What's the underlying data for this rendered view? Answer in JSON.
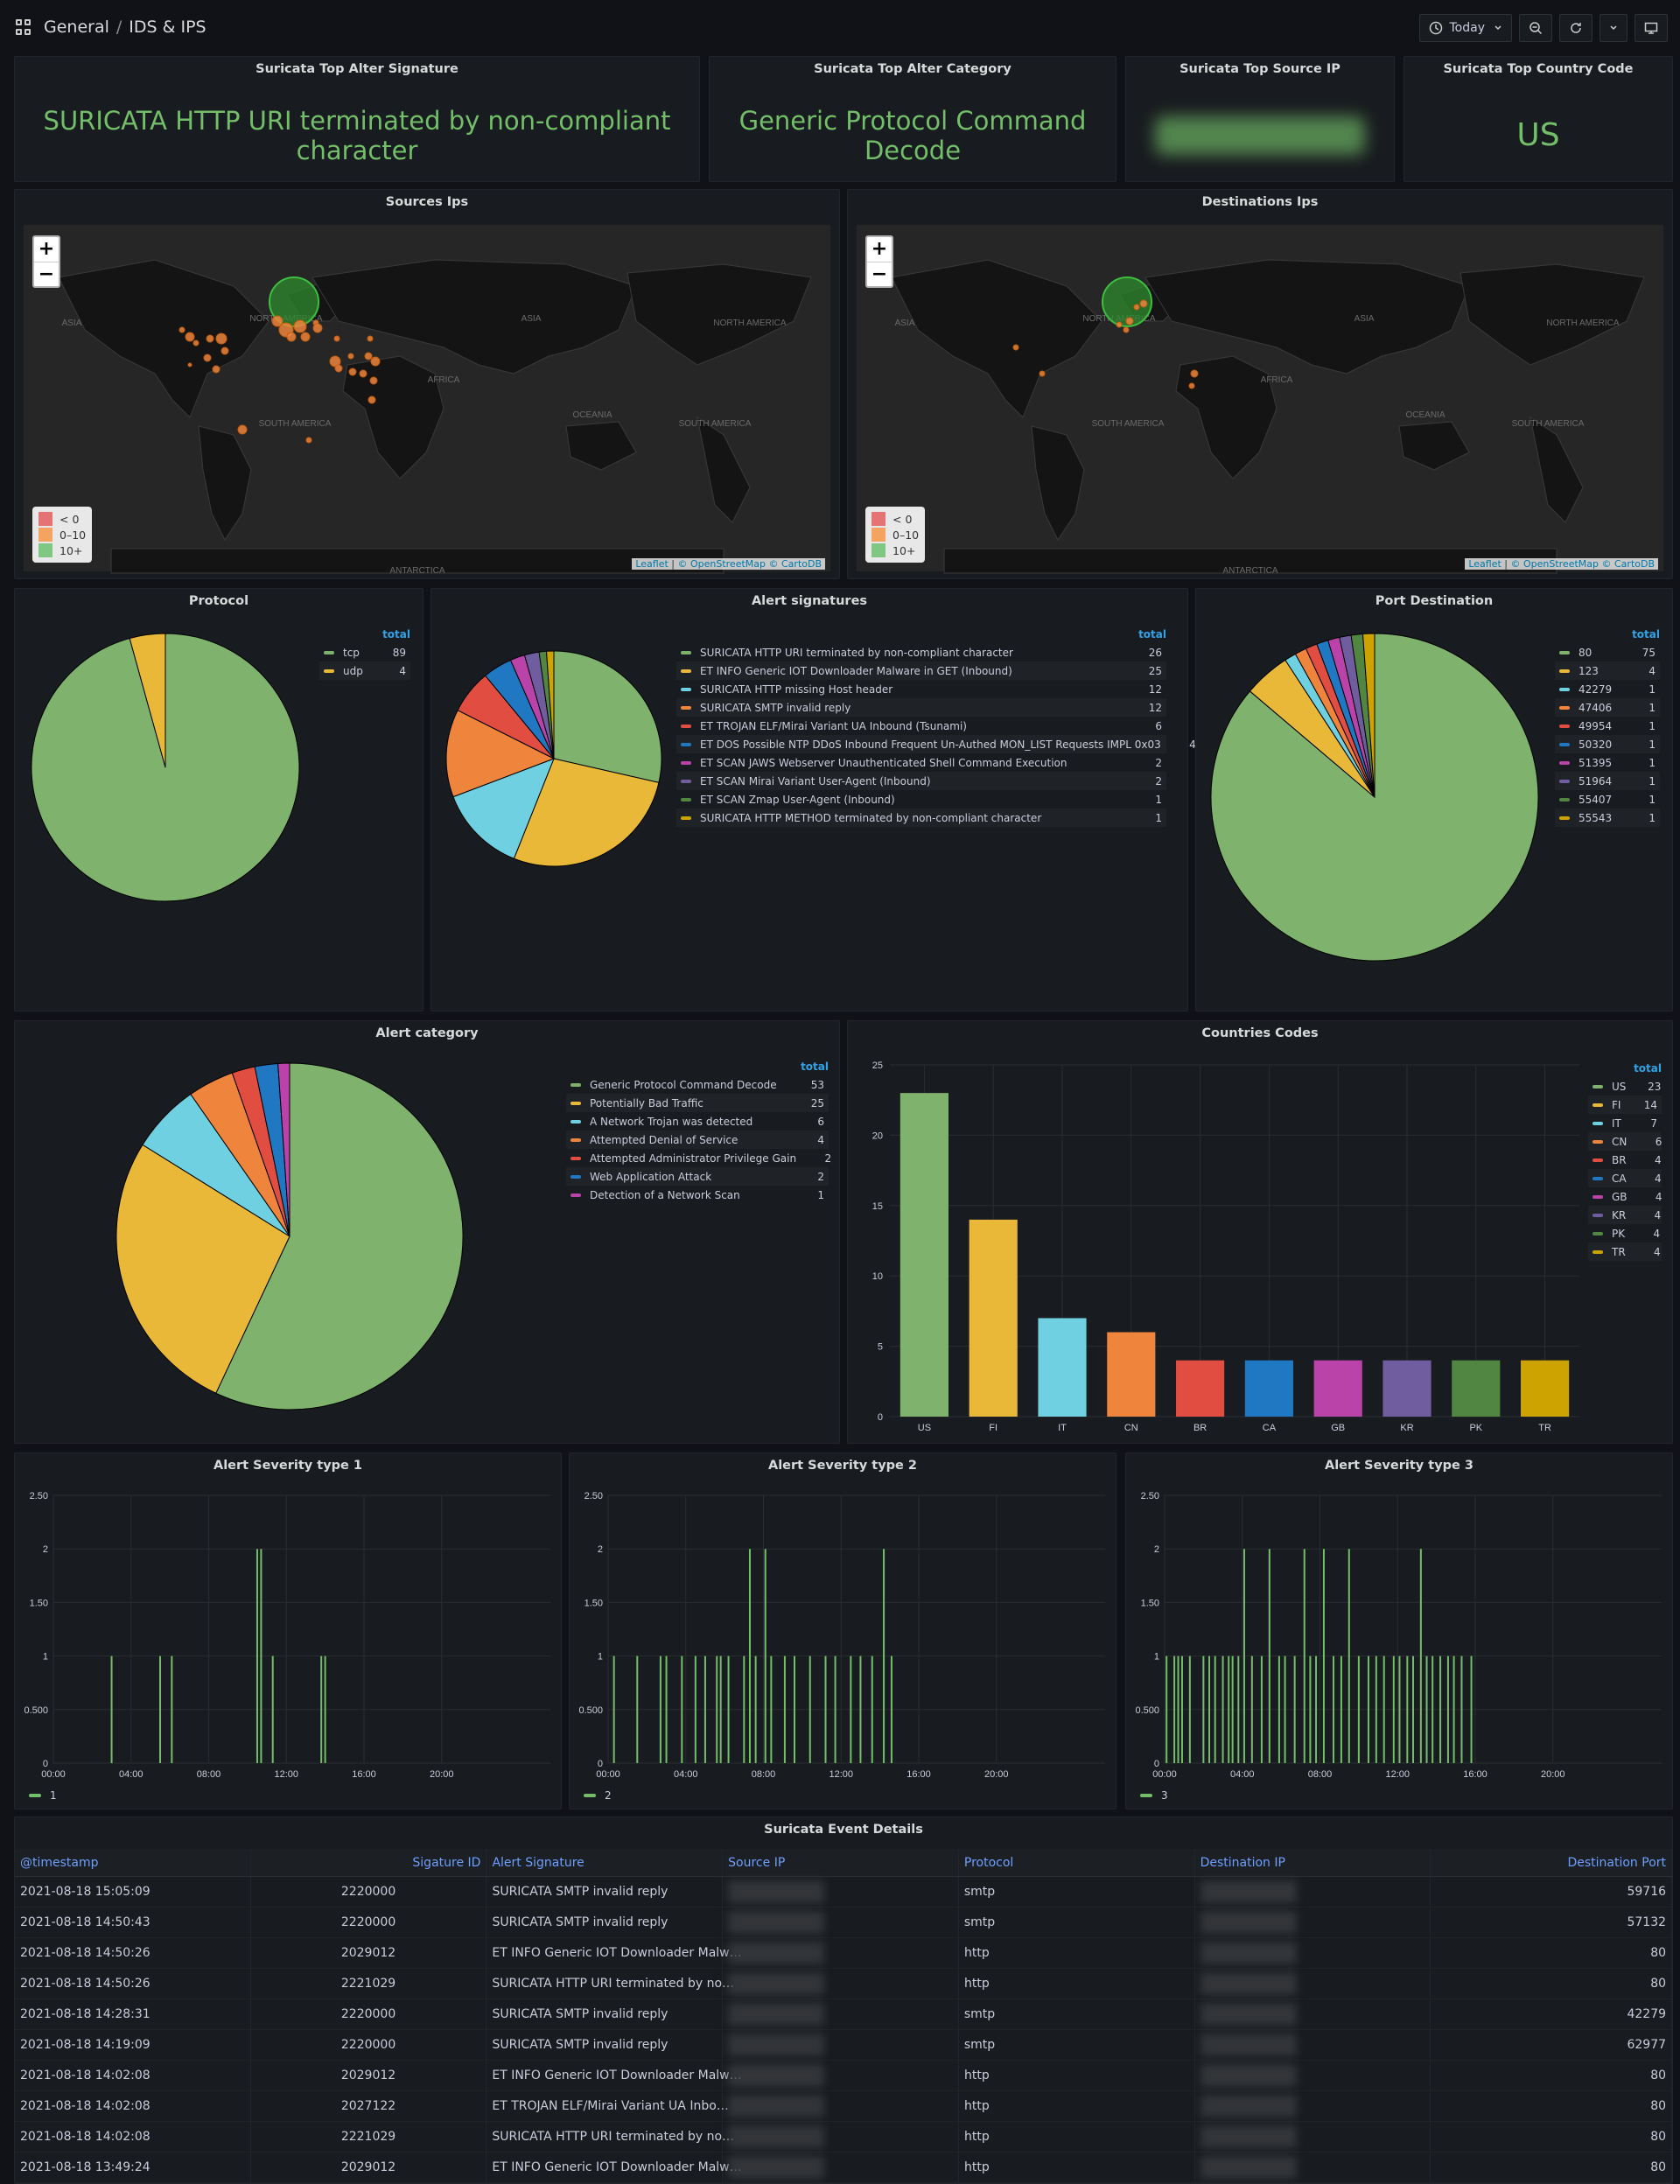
{
  "breadcrumb": {
    "folder": "General",
    "dashboard": "IDS & IPS"
  },
  "toolbar": {
    "time_range": "Today"
  },
  "colors": {
    "green": "#73bf69",
    "yellow": "#f2cc0c",
    "palette": [
      "#7eb26d",
      "#eab839",
      "#6ed0e0",
      "#ef843c",
      "#e24d42",
      "#1f78c1",
      "#ba43a9",
      "#705da0",
      "#508642",
      "#cca300"
    ]
  },
  "stats": [
    {
      "title": "Suricata Top Alter Signature",
      "value": "SURICATA HTTP URI terminated by non-compliant character"
    },
    {
      "title": "Suricata Top Alter Category",
      "value": "Generic Protocol Command Decode"
    },
    {
      "title": "Suricata Top Source IP",
      "value": ""
    },
    {
      "title": "Suricata Top Country Code",
      "value": "US"
    }
  ],
  "maps": {
    "sources": {
      "title": "Sources Ips"
    },
    "destinations": {
      "title": "Destinations Ips"
    },
    "labels": [
      "ASIA",
      "NORTH AMERICA",
      "ASIA",
      "NORTH AMERICA",
      "AFRICA",
      "SOUTH AMERICA",
      "OCEANIA",
      "SOUTH AMERICA",
      "ANTARCTICA"
    ],
    "legend": [
      "< 0",
      "0–10",
      "10+"
    ],
    "attribution": {
      "leaflet": "Leaflet",
      "osm": "© OpenStreetMap",
      "carto": "© CartoDB"
    }
  },
  "protocol": {
    "title": "Protocol",
    "header": "total",
    "items": [
      {
        "name": "tcp",
        "value": 89
      },
      {
        "name": "udp",
        "value": 4
      }
    ]
  },
  "signatures": {
    "title": "Alert signatures",
    "header": "total",
    "items": [
      {
        "name": "SURICATA HTTP URI terminated by non-compliant character",
        "value": 26
      },
      {
        "name": "ET INFO Generic IOT Downloader Malware in GET (Inbound)",
        "value": 25
      },
      {
        "name": "SURICATA HTTP missing Host header",
        "value": 12
      },
      {
        "name": "SURICATA SMTP invalid reply",
        "value": 12
      },
      {
        "name": "ET TROJAN ELF/Mirai Variant UA Inbound (Tsunami)",
        "value": 6
      },
      {
        "name": "ET DOS Possible NTP DDoS Inbound Frequent Un-Authed MON_LIST Requests IMPL 0x03",
        "value": 4
      },
      {
        "name": "ET SCAN JAWS Webserver Unauthenticated Shell Command Execution",
        "value": 2
      },
      {
        "name": "ET SCAN Mirai Variant User-Agent (Inbound)",
        "value": 2
      },
      {
        "name": "ET SCAN Zmap User-Agent (Inbound)",
        "value": 1
      },
      {
        "name": "SURICATA HTTP METHOD terminated by non-compliant character",
        "value": 1
      }
    ]
  },
  "ports": {
    "title": "Port Destination",
    "header": "total",
    "items": [
      {
        "name": "80",
        "value": 75
      },
      {
        "name": "123",
        "value": 4
      },
      {
        "name": "42279",
        "value": 1
      },
      {
        "name": "47406",
        "value": 1
      },
      {
        "name": "49954",
        "value": 1
      },
      {
        "name": "50320",
        "value": 1
      },
      {
        "name": "51395",
        "value": 1
      },
      {
        "name": "51964",
        "value": 1
      },
      {
        "name": "55407",
        "value": 1
      },
      {
        "name": "55543",
        "value": 1
      }
    ]
  },
  "categories": {
    "title": "Alert category",
    "header": "total",
    "items": [
      {
        "name": "Generic Protocol Command Decode",
        "value": 53
      },
      {
        "name": "Potentially Bad Traffic",
        "value": 25
      },
      {
        "name": "A Network Trojan was detected",
        "value": 6
      },
      {
        "name": "Attempted Denial of Service",
        "value": 4
      },
      {
        "name": "Attempted Administrator Privilege Gain",
        "value": 2
      },
      {
        "name": "Web Application Attack",
        "value": 2
      },
      {
        "name": "Detection of a Network Scan",
        "value": 1
      }
    ]
  },
  "chart_data": [
    {
      "type": "bar",
      "title": "Countries Codes",
      "categories": [
        "US",
        "FI",
        "IT",
        "CN",
        "BR",
        "CA",
        "GB",
        "KR",
        "PK",
        "TR"
      ],
      "values": [
        23,
        14,
        7,
        6,
        4,
        4,
        4,
        4,
        4,
        4
      ],
      "ylim": [
        0,
        25
      ],
      "yticks": [
        0,
        5,
        10,
        15,
        20,
        25
      ],
      "legend_header": "total",
      "legend": "right"
    },
    {
      "type": "bar",
      "title": "Alert Severity type 1",
      "series": [
        {
          "name": "1"
        }
      ],
      "xticks": [
        "00:00",
        "04:00",
        "08:00",
        "12:00",
        "16:00",
        "20:00"
      ],
      "yticks": [
        "0",
        "0.500",
        "1",
        "1.50",
        "2",
        "2.50"
      ],
      "ylim": [
        0,
        2.5
      ],
      "points": [
        [
          3,
          1
        ],
        [
          5.5,
          1
        ],
        [
          6.1,
          1
        ],
        [
          10.5,
          2
        ],
        [
          10.7,
          2
        ],
        [
          11.3,
          1
        ],
        [
          13.8,
          1
        ],
        [
          14,
          1
        ]
      ]
    },
    {
      "type": "bar",
      "title": "Alert Severity type 2",
      "series": [
        {
          "name": "2"
        }
      ],
      "xticks": [
        "00:00",
        "04:00",
        "08:00",
        "12:00",
        "16:00",
        "20:00"
      ],
      "yticks": [
        "0",
        "0.500",
        "1",
        "1.50",
        "2",
        "2.50"
      ],
      "ylim": [
        0,
        2.5
      ],
      "points": [
        [
          0.3,
          1
        ],
        [
          1.5,
          1
        ],
        [
          2.7,
          1
        ],
        [
          3,
          1
        ],
        [
          3.8,
          1
        ],
        [
          4.5,
          1
        ],
        [
          5,
          1
        ],
        [
          5.6,
          1
        ],
        [
          5.8,
          1
        ],
        [
          6.2,
          1
        ],
        [
          7,
          1
        ],
        [
          7.3,
          2
        ],
        [
          7.6,
          1
        ],
        [
          8.1,
          2
        ],
        [
          8.4,
          1
        ],
        [
          9.1,
          1
        ],
        [
          9.6,
          1
        ],
        [
          10.4,
          1
        ],
        [
          11.2,
          1
        ],
        [
          11.7,
          1
        ],
        [
          12.5,
          1
        ],
        [
          13,
          1
        ],
        [
          13.6,
          1
        ],
        [
          14.2,
          2
        ],
        [
          14.6,
          1
        ]
      ]
    },
    {
      "type": "bar",
      "title": "Alert Severity type 3",
      "series": [
        {
          "name": "3"
        }
      ],
      "xticks": [
        "00:00",
        "04:00",
        "08:00",
        "12:00",
        "16:00",
        "20:00"
      ],
      "yticks": [
        "0",
        "0.500",
        "1",
        "1.50",
        "2",
        "2.50"
      ],
      "ylim": [
        0,
        2.5
      ],
      "points": [
        [
          0.1,
          1
        ],
        [
          0.5,
          1
        ],
        [
          0.7,
          1
        ],
        [
          0.9,
          1
        ],
        [
          1.3,
          1
        ],
        [
          2,
          1
        ],
        [
          2.3,
          1
        ],
        [
          2.6,
          1
        ],
        [
          3,
          1
        ],
        [
          3.3,
          1
        ],
        [
          3.5,
          1
        ],
        [
          3.8,
          1
        ],
        [
          4.1,
          2
        ],
        [
          4.5,
          1
        ],
        [
          5,
          1
        ],
        [
          5.4,
          2
        ],
        [
          5.9,
          1
        ],
        [
          6.2,
          1
        ],
        [
          6.7,
          1
        ],
        [
          7.2,
          2
        ],
        [
          7.5,
          1
        ],
        [
          7.8,
          1
        ],
        [
          8.2,
          2
        ],
        [
          8.7,
          1
        ],
        [
          9.1,
          1
        ],
        [
          9.5,
          2
        ],
        [
          10,
          1
        ],
        [
          10.5,
          1
        ],
        [
          10.9,
          1
        ],
        [
          11.3,
          1
        ],
        [
          11.8,
          1
        ],
        [
          12.1,
          1
        ],
        [
          12.5,
          1
        ],
        [
          12.8,
          1
        ],
        [
          13.2,
          2
        ],
        [
          13.5,
          1
        ],
        [
          13.8,
          1
        ],
        [
          14.2,
          1
        ],
        [
          14.6,
          1
        ],
        [
          14.9,
          1
        ],
        [
          15.3,
          1
        ],
        [
          15.8,
          1
        ]
      ]
    }
  ],
  "events": {
    "title": "Suricata Event Details",
    "columns": [
      "@timestamp",
      "Sigature ID",
      "Alert Signature",
      "Source IP",
      "Protocol",
      "Destination IP",
      "Destination Port"
    ],
    "rows": [
      [
        "2021-08-18 15:05:09",
        "2220000",
        "SURICATA SMTP invalid reply",
        "",
        "smtp",
        "",
        "59716"
      ],
      [
        "2021-08-18 14:50:43",
        "2220000",
        "SURICATA SMTP invalid reply",
        "",
        "smtp",
        "",
        "57132"
      ],
      [
        "2021-08-18 14:50:26",
        "2029012",
        "ET INFO Generic IOT Downloader Malw…",
        "",
        "http",
        "",
        "80"
      ],
      [
        "2021-08-18 14:50:26",
        "2221029",
        "SURICATA HTTP URI terminated by no…",
        "",
        "http",
        "",
        "80"
      ],
      [
        "2021-08-18 14:28:31",
        "2220000",
        "SURICATA SMTP invalid reply",
        "",
        "smtp",
        "",
        "42279"
      ],
      [
        "2021-08-18 14:19:09",
        "2220000",
        "SURICATA SMTP invalid reply",
        "",
        "smtp",
        "",
        "62977"
      ],
      [
        "2021-08-18 14:02:08",
        "2029012",
        "ET INFO Generic IOT Downloader Malw…",
        "",
        "http",
        "",
        "80"
      ],
      [
        "2021-08-18 14:02:08",
        "2027122",
        "ET TROJAN ELF/Mirai Variant UA Inbo…",
        "",
        "http",
        "",
        "80"
      ],
      [
        "2021-08-18 14:02:08",
        "2221029",
        "SURICATA HTTP URI terminated by no…",
        "",
        "http",
        "",
        "80"
      ],
      [
        "2021-08-18 13:49:24",
        "2029012",
        "ET INFO Generic IOT Downloader Malw…",
        "",
        "http",
        "",
        "80"
      ]
    ]
  }
}
